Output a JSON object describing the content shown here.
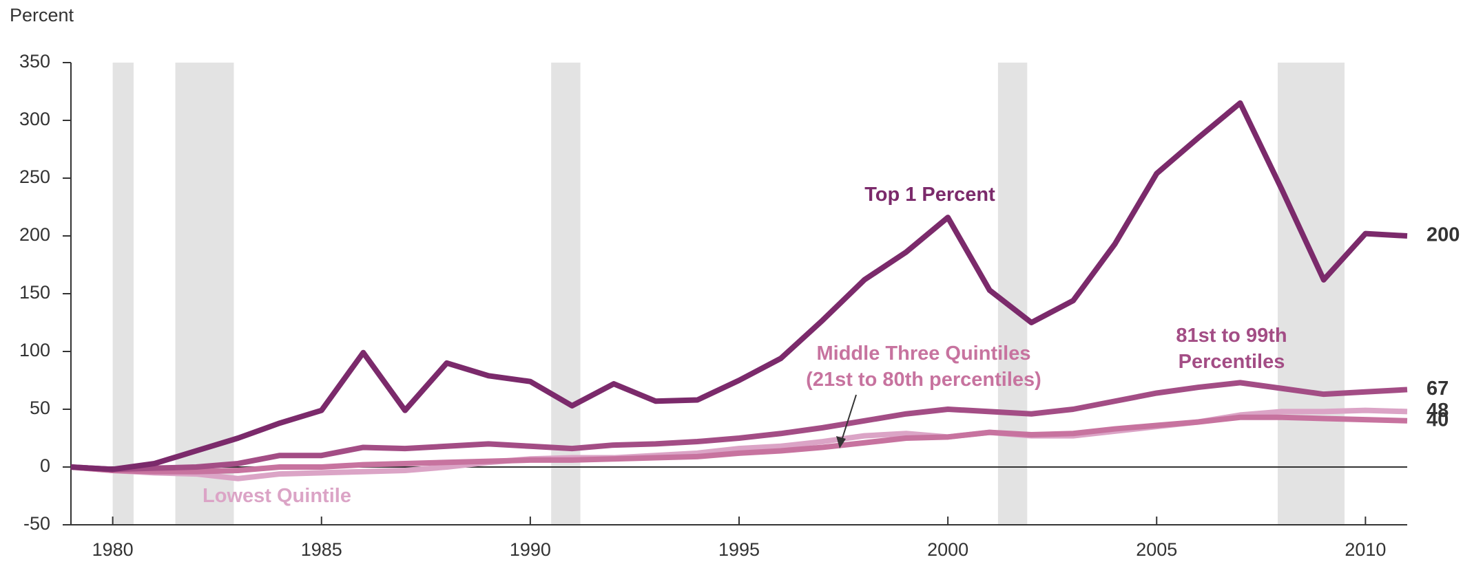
{
  "chart_data": {
    "type": "line",
    "y_label": "Percent",
    "x": [
      1979,
      1980,
      1981,
      1982,
      1983,
      1984,
      1985,
      1986,
      1987,
      1988,
      1989,
      1990,
      1991,
      1992,
      1993,
      1994,
      1995,
      1996,
      1997,
      1998,
      1999,
      2000,
      2001,
      2002,
      2003,
      2004,
      2005,
      2006,
      2007,
      2008,
      2009,
      2010,
      2011
    ],
    "series": [
      {
        "name": "Top 1 Percent",
        "color": "#7b2a6b",
        "values": [
          0,
          -2,
          3,
          14,
          25,
          38,
          49,
          99,
          49,
          90,
          79,
          74,
          53,
          72,
          57,
          58,
          75,
          94,
          127,
          162,
          186,
          216,
          153,
          125,
          144,
          193,
          254,
          285,
          315,
          240,
          162,
          202,
          200
        ]
      },
      {
        "name": "81st to 99th\nPercentiles",
        "color": "#a34d85",
        "values": [
          0,
          -2,
          -1,
          0,
          3,
          10,
          10,
          17,
          16,
          18,
          20,
          18,
          16,
          19,
          20,
          22,
          25,
          29,
          34,
          40,
          46,
          50,
          48,
          46,
          50,
          57,
          64,
          69,
          73,
          68,
          63,
          65,
          67
        ]
      },
      {
        "name": "Middle Three Quintiles\n(21st to 80th percentiles)",
        "color": "#c7739f",
        "values": [
          0,
          -3,
          -4,
          -4,
          -3,
          0,
          0,
          2,
          3,
          4,
          5,
          6,
          6,
          7,
          8,
          9,
          12,
          14,
          17,
          21,
          25,
          26,
          30,
          28,
          29,
          33,
          36,
          39,
          43,
          43,
          42,
          41,
          40
        ]
      },
      {
        "name": "Lowest Quintile",
        "color": "#dba4c6",
        "values": [
          0,
          -3,
          -5,
          -6,
          -10,
          -6,
          -5,
          -4,
          -3,
          0,
          4,
          7,
          8,
          8,
          10,
          12,
          16,
          18,
          22,
          27,
          29,
          26,
          30,
          27,
          27,
          31,
          35,
          39,
          45,
          48,
          48,
          49,
          48
        ]
      }
    ],
    "shaded_periods": [
      [
        1980,
        1980.5
      ],
      [
        1981.5,
        1982.9
      ],
      [
        1990.5,
        1991.2
      ],
      [
        2001.2,
        2001.9
      ],
      [
        2007.9,
        2009.5
      ]
    ],
    "xlim": [
      1979,
      2011
    ],
    "xticks": [
      1980,
      1985,
      1990,
      1995,
      2000,
      2005,
      2010
    ],
    "ylim": [
      -50,
      350
    ],
    "yticks": [
      -50,
      0,
      50,
      100,
      150,
      200,
      250,
      300,
      350
    ]
  }
}
